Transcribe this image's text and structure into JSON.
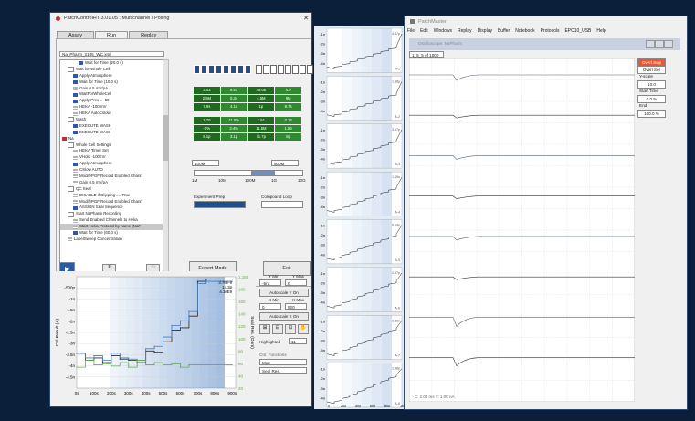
{
  "patchcontrol": {
    "title": "PatchControlHT 3.01.05 : Multichannel  /  Polling",
    "tabs": [
      "Assay",
      "Run",
      "Replay"
    ],
    "active_tab": "Run",
    "file_name": "Na_Pharm_2105_WC.xml",
    "tree": [
      {
        "label": "Wait for Time (20.0 s)",
        "icon": "hourglass-icon",
        "level": 3
      },
      {
        "label": "Wait for Whole Cell",
        "icon": "folder-icon",
        "level": 1
      },
      {
        "label": "Apply Atmosphere",
        "icon": "pressure-icon",
        "level": 2
      },
      {
        "label": "Wait for Time (10.0 s)",
        "icon": "hourglass-icon",
        "level": 2
      },
      {
        "label": "Gain 0.5 mV/pA",
        "icon": "gain-icon",
        "level": 2
      },
      {
        "label": "WaitForWholeCell",
        "icon": "hourglass-icon",
        "level": 2
      },
      {
        "label": "Apply Pres = -50",
        "icon": "pressure-icon",
        "level": 2
      },
      {
        "label": "HEKA -100 mV",
        "icon": "list-icon",
        "level": 2
      },
      {
        "label": "HEKA AutoCslow",
        "icon": "list-icon",
        "level": 2
      },
      {
        "label": "Wash",
        "icon": "folder-icon",
        "level": 1
      },
      {
        "label": "EXECUTE WASH",
        "icon": "wash-icon",
        "level": 2
      },
      {
        "label": "EXECUTE WASH",
        "icon": "wash-icon",
        "level": 2
      },
      {
        "label": "Na",
        "icon": "folder-icon",
        "level": 0
      },
      {
        "label": "Whole Cell Settings",
        "icon": "folder-icon",
        "level": 1
      },
      {
        "label": "HEKA Timer Set",
        "icon": "list-icon",
        "level": 2
      },
      {
        "label": "VHold -100mV",
        "icon": "list-icon",
        "level": 2
      },
      {
        "label": "Apply Atmosphere",
        "icon": "pressure-icon",
        "level": 2
      },
      {
        "label": "CSlow AUTO",
        "icon": "list-icon",
        "level": 2
      },
      {
        "label": "ModifyPGF Record Enabled Chann",
        "icon": "list-icon",
        "level": 2
      },
      {
        "label": "Gain 0.5 mV/pA",
        "icon": "gain-icon",
        "level": 2
      },
      {
        "label": "QC Seal",
        "icon": "folder-icon",
        "level": 1
      },
      {
        "label": "DISABLE if Clipping == True",
        "icon": "list-icon",
        "level": 2
      },
      {
        "label": "ModifyPGF Record Enabled Chann",
        "icon": "list-icon",
        "level": 2
      },
      {
        "label": "ASSIGN Seal Sequence",
        "icon": "assign-icon",
        "level": 2
      },
      {
        "label": "Start NaPharm Recording",
        "icon": "folder-icon",
        "level": 1
      },
      {
        "label": "Send Enabled Channels to Heka",
        "icon": "list-icon",
        "level": 2
      },
      {
        "label": "Start Heka Protocol by name (NaF",
        "icon": "list-icon",
        "level": 2,
        "selected": true
      },
      {
        "label": "Wait for Time (60.0 s)",
        "icon": "hourglass-icon",
        "level": 2
      },
      {
        "label": "LabelSweep Concentration",
        "icon": "list-icon",
        "level": 1
      }
    ],
    "green_rows": [
      [
        "3.03",
        "6.93",
        "45.05",
        "4.0"
      ],
      [
        "2.5M",
        "0.34",
        "4.5M",
        "9M"
      ],
      [
        "7.9s",
        "4.1s",
        "1p",
        "9.7s"
      ],
      [
        "1.70",
        "11.0%",
        "1.51",
        "3.13"
      ],
      [
        "-0%",
        "3.4%",
        "11.5M",
        "1.56"
      ],
      [
        "6.1p",
        "3.1p",
        "11.7p",
        "8p"
      ]
    ],
    "res_left": "100M",
    "res_right": "500M",
    "res_ticks": [
      "1M",
      "10M",
      "100M",
      "1G",
      "10G"
    ],
    "experiment_label": "Experiment Prep",
    "compound_label": "Compound Loop",
    "expert_button": "Expert Mode",
    "exit_button": "Exit",
    "ymin_label": "Y Min",
    "ymax_label": "Y Max",
    "ymin": "-5n",
    "ymax": "0",
    "autoscale_y": "Autoscale Y On",
    "xmin_label": "X Min",
    "xmax_label": "X Max",
    "xmin": "0",
    "xmax": "920",
    "autoscale_x": "Autoscale X On",
    "highlighted_label": "Highlighted",
    "highlighted_value": "11",
    "ctrl_functions_label": "Ctrl. Functions",
    "func1": "Max",
    "func2": "Seal Res.",
    "plot_ylabel": "Ctrl Result (A)",
    "plot_y2label": "Seal Res. (Ohm)",
    "plot_annotation": [
      "3.76e-9",
      "14.3p",
      "4.10E9"
    ]
  },
  "chart_data": {
    "type": "line",
    "xlabel": "",
    "ylabel": "Ctrl Result (A)",
    "y2label": "Seal Res. (Ohm)",
    "x_ticks": [
      "0s",
      "100s",
      "200s",
      "300s",
      "400s",
      "500s",
      "600s",
      "700s",
      "800s",
      "900s"
    ],
    "y_ticks": [
      "-500p",
      "-1n",
      "-1.5n",
      "-2n",
      "-2.5n",
      "-3n",
      "-3.5n",
      "-4n",
      "-4.5n"
    ],
    "y2_ticks": [
      "1,160",
      "180",
      "160",
      "140",
      "120",
      "100",
      "80",
      "60",
      "40",
      "20"
    ],
    "xlim": [
      0,
      920
    ],
    "ylim": [
      -4.8,
      0
    ],
    "series": [
      {
        "name": "",
        "color": "#2a2a2a",
        "x": [
          0,
          50,
          100,
          150,
          200,
          250,
          300,
          350,
          400,
          450,
          500,
          550,
          600,
          650,
          700,
          750,
          800,
          850,
          900
        ],
        "y": [
          -3.3,
          -3.6,
          -3.5,
          -3.7,
          -3.4,
          -3.55,
          -3.6,
          -3.7,
          -3.2,
          -3.25,
          -2.8,
          -2.3,
          -2.2,
          -1.7,
          -0.2,
          -0.1,
          -0.1,
          -0.1,
          -0.1
        ]
      },
      {
        "name": "",
        "color": "#3c7ac4",
        "x": [
          0,
          50,
          100,
          150,
          200,
          250,
          300,
          350,
          400,
          450,
          500,
          550,
          600,
          650,
          700,
          750,
          800,
          850,
          900
        ],
        "y": [
          -3.3,
          -3.5,
          -3.4,
          -3.6,
          -3.3,
          -3.5,
          -3.55,
          -3.6,
          -3.1,
          -3.0,
          -2.6,
          -2.1,
          -1.9,
          -1.5,
          -0.3,
          -0.2,
          -0.2,
          -0.2,
          -0.2
        ]
      },
      {
        "name": "",
        "color": "#6aa84f",
        "x": [
          0,
          50,
          100,
          150,
          200,
          250,
          300,
          350,
          400,
          450,
          500,
          550,
          600,
          650,
          700,
          750,
          800,
          850,
          900
        ],
        "y": [
          -3.9,
          -3.6,
          -3.8,
          -3.75,
          -3.85,
          -3.7,
          -3.9,
          -3.6,
          -3.8,
          -3.7,
          -3.8,
          -3.75,
          -3.9,
          -3.8,
          -3.8,
          -3.8,
          -3.8,
          -3.8,
          -3.8
        ]
      }
    ]
  },
  "stack": {
    "ticks": [
      "-1n",
      "-2n",
      "-3n",
      "-4n"
    ],
    "x_ticks": [
      "0",
      "200",
      "400",
      "600",
      "800",
      "1k"
    ],
    "panels": [
      {
        "label": "A-1",
        "note": "4.37p"
      },
      {
        "label": "A-2",
        "note": "1.38p"
      },
      {
        "label": "A-3",
        "note": "3.97p"
      },
      {
        "label": "A-4",
        "note": "1.49n"
      },
      {
        "label": "A-5",
        "note": "0.64p"
      },
      {
        "label": "A-6",
        "note": "2.87p"
      },
      {
        "label": "A-7",
        "note": "6.38n"
      },
      {
        "label": "A-8",
        "note": "1.88p"
      }
    ]
  },
  "patchmaster": {
    "title": "PatchMaster",
    "menu": [
      "File",
      "Edit",
      "Windows",
      "Replay",
      "Display",
      "Buffer",
      "Notebook",
      "Protocols",
      "EPC10_USB",
      "Help"
    ],
    "sub_title": "Oscilloscope: NaPharm",
    "sweep_label": "1_5_5 of 1000",
    "buttons": {
      "overl_swp": "Overl Swp",
      "overl_ser": "Overl Ser",
      "yscale_label": "Y-scale",
      "yscale_value": "10.0",
      "start_label": "Start Time",
      "start_value": "0.0 %",
      "end_label": "End",
      "end_value": "100.0 %"
    },
    "status": "X: 2.00 ms    Y: 1.00 nA"
  },
  "colors": {
    "background": "#0b1f3a",
    "accent": "#2a4a88",
    "green": "#2f8a2f"
  }
}
